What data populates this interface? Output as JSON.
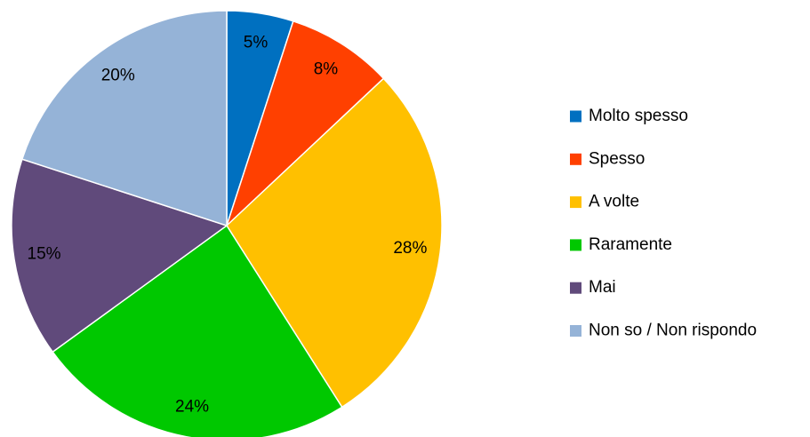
{
  "chart_data": {
    "type": "pie",
    "categories": [
      "Molto spesso",
      "Spesso",
      "A volte",
      "Raramente",
      "Mai",
      "Non so / Non rispondo"
    ],
    "values": [
      5,
      8,
      28,
      24,
      15,
      20
    ],
    "value_labels": [
      "5%",
      "8%",
      "28%",
      "24%",
      "15%",
      "20%"
    ],
    "colors": [
      "#0070c0",
      "#ff4000",
      "#ffc000",
      "#00c800",
      "#604a7b",
      "#95b3d7"
    ],
    "legend": "right"
  }
}
